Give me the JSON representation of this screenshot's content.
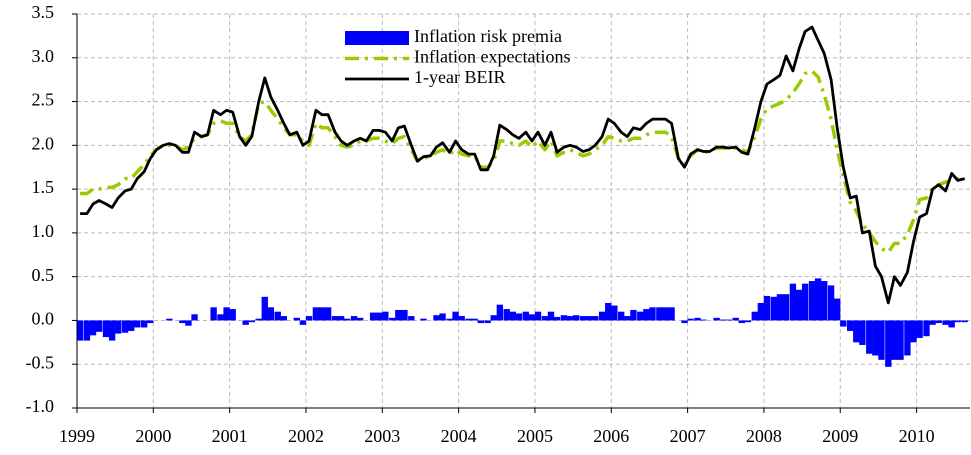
{
  "chart_data": {
    "type": "combo",
    "x": [
      1999.04,
      1999.13,
      1999.21,
      1999.29,
      1999.38,
      1999.46,
      1999.54,
      1999.63,
      1999.71,
      1999.79,
      1999.88,
      1999.96,
      2000.04,
      2000.13,
      2000.21,
      2000.29,
      2000.38,
      2000.46,
      2000.54,
      2000.63,
      2000.71,
      2000.79,
      2000.88,
      2000.96,
      2001.04,
      2001.13,
      2001.21,
      2001.29,
      2001.38,
      2001.46,
      2001.54,
      2001.63,
      2001.71,
      2001.79,
      2001.88,
      2001.96,
      2002.04,
      2002.13,
      2002.21,
      2002.29,
      2002.38,
      2002.46,
      2002.54,
      2002.63,
      2002.71,
      2002.79,
      2002.88,
      2002.96,
      2003.04,
      2003.13,
      2003.21,
      2003.29,
      2003.38,
      2003.46,
      2003.54,
      2003.63,
      2003.71,
      2003.79,
      2003.88,
      2003.96,
      2004.04,
      2004.13,
      2004.21,
      2004.29,
      2004.38,
      2004.46,
      2004.54,
      2004.63,
      2004.71,
      2004.79,
      2004.88,
      2004.96,
      2005.04,
      2005.13,
      2005.21,
      2005.29,
      2005.38,
      2005.46,
      2005.54,
      2005.63,
      2005.71,
      2005.79,
      2005.88,
      2005.96,
      2006.04,
      2006.13,
      2006.21,
      2006.29,
      2006.38,
      2006.46,
      2006.54,
      2006.63,
      2006.71,
      2006.79,
      2006.88,
      2006.96,
      2007.04,
      2007.13,
      2007.21,
      2007.29,
      2007.38,
      2007.46,
      2007.54,
      2007.63,
      2007.71,
      2007.79,
      2007.88,
      2007.96,
      2008.04,
      2008.13,
      2008.21,
      2008.29,
      2008.38,
      2008.46,
      2008.54,
      2008.63,
      2008.71,
      2008.79,
      2008.88,
      2008.96,
      2009.04,
      2009.13,
      2009.21,
      2009.29,
      2009.38,
      2009.46,
      2009.54,
      2009.63,
      2009.71,
      2009.79,
      2009.88,
      2009.96,
      2010.04,
      2010.13,
      2010.21,
      2010.29,
      2010.38,
      2010.46,
      2010.54,
      2010.63
    ],
    "series": [
      {
        "name": "Inflation risk premia",
        "type": "bar",
        "color": "#0000ff",
        "values": [
          -0.23,
          -0.23,
          -0.17,
          -0.13,
          -0.19,
          -0.23,
          -0.15,
          -0.14,
          -0.12,
          -0.08,
          -0.08,
          -0.03,
          0,
          0,
          0.02,
          0,
          -0.03,
          -0.06,
          0.07,
          0,
          0,
          0.15,
          0.07,
          0.15,
          0.13,
          0,
          -0.05,
          -0.02,
          0.02,
          0.27,
          0.15,
          0.1,
          0.05,
          0,
          0.03,
          -0.05,
          0.05,
          0.15,
          0.15,
          0.15,
          0.05,
          0.05,
          0.02,
          0.05,
          0.03,
          0,
          0.09,
          0.09,
          0.1,
          0.03,
          0.12,
          0.12,
          0.05,
          0,
          0.02,
          0,
          0.06,
          0.08,
          0.02,
          0.1,
          0.05,
          0.02,
          0.02,
          -0.03,
          -0.03,
          0.06,
          0.18,
          0.13,
          0.1,
          0.08,
          0.1,
          0.07,
          0.1,
          0.05,
          0.1,
          0.04,
          0.06,
          0.05,
          0.06,
          0.05,
          0.05,
          0.05,
          0.1,
          0.2,
          0.17,
          0.1,
          0.05,
          0.12,
          0.1,
          0.13,
          0.15,
          0.15,
          0.15,
          0.15,
          0,
          -0.03,
          0.02,
          0.03,
          0.01,
          0,
          0.03,
          0.01,
          0.01,
          0.03,
          -0.03,
          -0.02,
          0.1,
          0.2,
          0.28,
          0.27,
          0.3,
          0.3,
          0.42,
          0.35,
          0.42,
          0.45,
          0.48,
          0.45,
          0.4,
          0.25,
          -0.07,
          -0.12,
          -0.25,
          -0.28,
          -0.38,
          -0.4,
          -0.45,
          -0.53,
          -0.45,
          -0.45,
          -0.4,
          -0.25,
          -0.2,
          -0.18,
          -0.05,
          -0.03,
          -0.05,
          -0.08,
          -0.02,
          -0.02
        ]
      },
      {
        "name": "Inflation expectations",
        "type": "line",
        "dash": true,
        "color": "#99cc00",
        "values": [
          1.45,
          1.45,
          1.5,
          1.5,
          1.52,
          1.52,
          1.55,
          1.62,
          1.62,
          1.7,
          1.78,
          1.88,
          1.95,
          2.0,
          2.0,
          2.0,
          1.95,
          1.98,
          2.08,
          2.1,
          2.12,
          2.25,
          2.28,
          2.25,
          2.25,
          2.1,
          2.05,
          2.12,
          2.48,
          2.5,
          2.4,
          2.3,
          2.2,
          2.12,
          2.12,
          2.05,
          2.0,
          2.25,
          2.2,
          2.2,
          2.1,
          2.0,
          1.98,
          2.0,
          2.05,
          2.05,
          2.08,
          2.08,
          2.05,
          2.02,
          2.08,
          2.1,
          1.95,
          1.82,
          1.85,
          1.88,
          1.92,
          1.95,
          1.9,
          1.95,
          1.9,
          1.88,
          1.88,
          1.75,
          1.75,
          1.82,
          2.05,
          2.05,
          2.02,
          2.0,
          2.05,
          1.98,
          2.05,
          1.95,
          2.05,
          1.88,
          1.92,
          1.95,
          1.92,
          1.88,
          1.9,
          1.95,
          2.0,
          2.1,
          2.08,
          2.05,
          2.05,
          2.08,
          2.08,
          2.12,
          2.15,
          2.15,
          2.15,
          2.1,
          1.85,
          1.78,
          1.88,
          1.95,
          1.92,
          1.93,
          1.97,
          1.97,
          1.97,
          1.97,
          1.95,
          1.92,
          2.1,
          2.3,
          2.42,
          2.45,
          2.48,
          2.52,
          2.6,
          2.7,
          2.82,
          2.85,
          2.78,
          2.58,
          2.3,
          1.95,
          1.65,
          1.35,
          1.25,
          1.1,
          1.0,
          0.9,
          0.82,
          0.78,
          0.88,
          0.88,
          0.98,
          1.15,
          1.38,
          1.4,
          1.52,
          1.55,
          1.58,
          1.6,
          1.62,
          1.62
        ]
      },
      {
        "name": "1-year BEIR",
        "type": "line",
        "dash": false,
        "color": "#000000",
        "values": [
          1.22,
          1.22,
          1.33,
          1.37,
          1.33,
          1.29,
          1.4,
          1.48,
          1.5,
          1.62,
          1.7,
          1.85,
          1.95,
          2.0,
          2.02,
          2.0,
          1.92,
          1.92,
          2.15,
          2.1,
          2.12,
          2.4,
          2.35,
          2.4,
          2.38,
          2.1,
          2.0,
          2.1,
          2.5,
          2.77,
          2.55,
          2.4,
          2.25,
          2.12,
          2.15,
          2.0,
          2.05,
          2.4,
          2.35,
          2.35,
          2.15,
          2.05,
          2.0,
          2.05,
          2.08,
          2.05,
          2.17,
          2.17,
          2.15,
          2.05,
          2.2,
          2.22,
          2.0,
          1.82,
          1.87,
          1.88,
          1.98,
          2.03,
          1.92,
          2.05,
          1.95,
          1.9,
          1.9,
          1.72,
          1.72,
          1.88,
          2.23,
          2.18,
          2.12,
          2.08,
          2.15,
          2.05,
          2.15,
          2.0,
          2.15,
          1.92,
          1.98,
          2.0,
          1.98,
          1.93,
          1.95,
          2.0,
          2.1,
          2.3,
          2.25,
          2.15,
          2.1,
          2.2,
          2.18,
          2.25,
          2.3,
          2.3,
          2.3,
          2.25,
          1.85,
          1.75,
          1.9,
          1.95,
          1.93,
          1.93,
          1.98,
          1.98,
          1.97,
          1.98,
          1.92,
          1.9,
          2.2,
          2.5,
          2.7,
          2.75,
          2.8,
          3.02,
          2.85,
          3.1,
          3.3,
          3.35,
          3.2,
          3.05,
          2.75,
          2.2,
          1.75,
          1.4,
          1.42,
          1.0,
          1.02,
          0.62,
          0.5,
          0.2,
          0.5,
          0.4,
          0.55,
          0.9,
          1.18,
          1.22,
          1.5,
          1.55,
          1.48,
          1.68,
          1.6,
          1.62
        ]
      }
    ],
    "xlim": [
      1999,
      2010.7
    ],
    "xticks": [
      1999,
      2000,
      2001,
      2002,
      2003,
      2004,
      2005,
      2006,
      2007,
      2008,
      2009,
      2010
    ],
    "ylim": [
      -1.0,
      3.5
    ],
    "yticks": [
      {
        "value": -1,
        "label": "-1.0"
      },
      {
        "value": -0.5,
        "label": "-0.5"
      },
      {
        "value": 0,
        "label": "0.0"
      },
      {
        "value": 0.5,
        "label": "0.5"
      },
      {
        "value": 1,
        "label": "1.0"
      },
      {
        "value": 1.5,
        "label": "1.5"
      },
      {
        "value": 2,
        "label": "2.0"
      },
      {
        "value": 2.5,
        "label": "2.5"
      },
      {
        "value": 3,
        "label": "3.0"
      },
      {
        "value": 3.5,
        "label": "3.5"
      }
    ],
    "grid": true,
    "legend": "top"
  }
}
